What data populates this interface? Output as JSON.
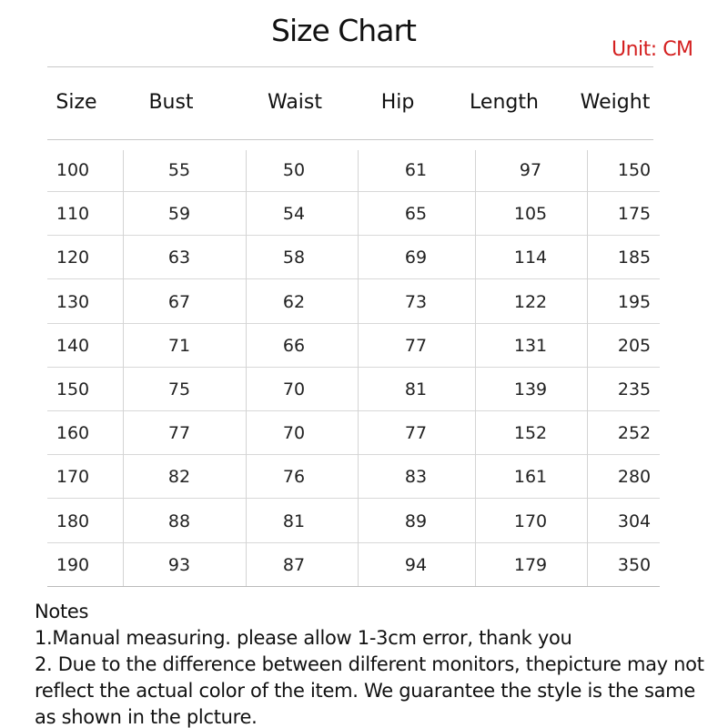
{
  "header": {
    "title": "Size Chart",
    "unit": "Unit: CM"
  },
  "table": {
    "headers": [
      "Size",
      "Bust",
      "Waist",
      "Hip",
      "Length",
      "Weight"
    ],
    "rows": [
      [
        100,
        55,
        50,
        61,
        97,
        150
      ],
      [
        110,
        59,
        54,
        65,
        105,
        175
      ],
      [
        120,
        63,
        58,
        69,
        114,
        185
      ],
      [
        130,
        67,
        62,
        73,
        122,
        195
      ],
      [
        140,
        71,
        66,
        77,
        131,
        205
      ],
      [
        150,
        75,
        70,
        81,
        139,
        235
      ],
      [
        160,
        77,
        70,
        77,
        152,
        252
      ],
      [
        170,
        82,
        76,
        83,
        161,
        280
      ],
      [
        180,
        88,
        81,
        89,
        170,
        304
      ],
      [
        190,
        93,
        87,
        94,
        179,
        350
      ]
    ]
  },
  "notes": {
    "heading": "Notes",
    "items": [
      "1.Manual measuring. please allow 1-3cm error, thank you",
      "2. Due to the difference between dilferent monitors, thepicture may not reflect the actual color of the item. We guarantee the style is the same as shown in the plcture."
    ]
  }
}
